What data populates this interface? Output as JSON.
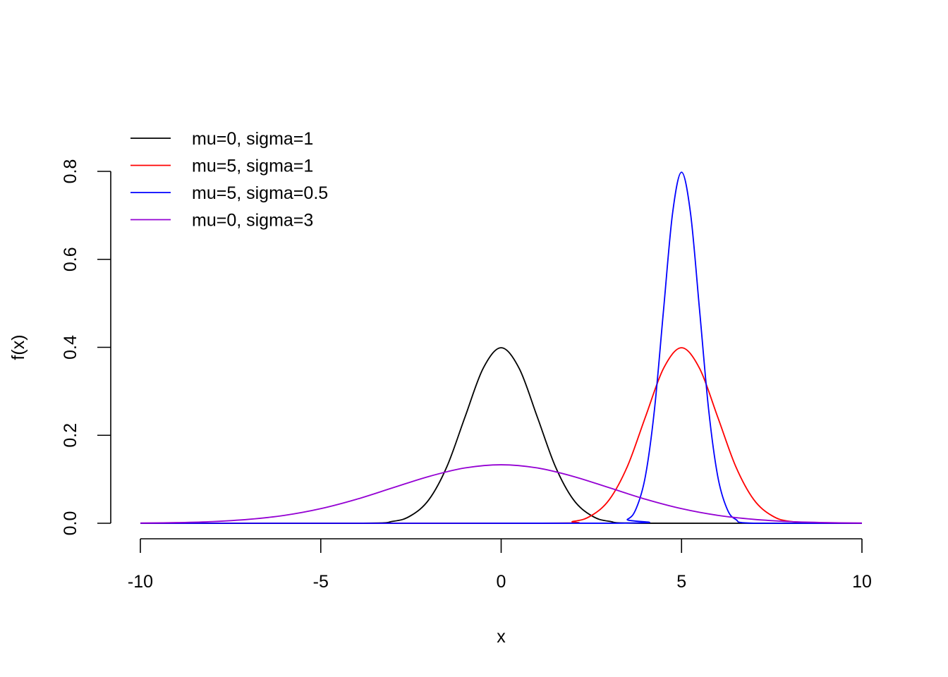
{
  "chart_data": {
    "type": "line",
    "title": "",
    "xlabel": "x",
    "ylabel": "f(x)",
    "xlim": [
      -10,
      10
    ],
    "ylim": [
      0,
      0.8
    ],
    "x_ticks": [
      -10,
      -5,
      0,
      5,
      10
    ],
    "x_tick_labels": [
      "-10",
      "-5",
      "0",
      "5",
      "10"
    ],
    "y_ticks": [
      0,
      0.2,
      0.4,
      0.6,
      0.8
    ],
    "y_tick_labels": [
      "0.0",
      "0.2",
      "0.4",
      "0.6",
      "0.8"
    ],
    "grid": false,
    "legend_position": "top-left",
    "series": [
      {
        "name": "mu=0, sigma=1",
        "color": "#000000",
        "x": [
          -10,
          -4,
          -3,
          -2.5,
          -2,
          -1.5,
          -1,
          -0.5,
          0,
          0.5,
          1,
          1.5,
          2,
          2.5,
          3,
          4,
          10
        ],
        "y": [
          0,
          0.0001,
          0.0044,
          0.0175,
          0.054,
          0.1295,
          0.242,
          0.352,
          0.399,
          0.352,
          0.242,
          0.1295,
          0.054,
          0.0175,
          0.0044,
          0.0001,
          0
        ]
      },
      {
        "name": "mu=5, sigma=1",
        "color": "#ff0000",
        "x": [
          -10,
          1,
          2,
          2.5,
          3,
          3.5,
          4,
          4.5,
          5,
          5.5,
          6,
          6.5,
          7,
          7.5,
          8,
          9,
          10
        ],
        "y": [
          0,
          0.0001,
          0.0044,
          0.0175,
          0.054,
          0.1295,
          0.242,
          0.352,
          0.399,
          0.352,
          0.242,
          0.1295,
          0.054,
          0.0175,
          0.0044,
          0.0001,
          0
        ]
      },
      {
        "name": "mu=5, sigma=0.5",
        "color": "#0000ff",
        "x": [
          -10,
          3,
          3.5,
          3.75,
          4,
          4.25,
          4.5,
          4.75,
          5,
          5.25,
          5.5,
          5.75,
          6,
          6.25,
          6.5,
          7,
          10
        ],
        "y": [
          0,
          0.0001,
          0.0089,
          0.035,
          0.108,
          0.259,
          0.484,
          0.704,
          0.798,
          0.704,
          0.484,
          0.259,
          0.108,
          0.035,
          0.0089,
          0.0001,
          0
        ]
      },
      {
        "name": "mu=0, sigma=3",
        "color": "#9400d3",
        "x": [
          -10,
          -9,
          -8,
          -7,
          -6,
          -5,
          -4,
          -3,
          -2,
          -1,
          0,
          1,
          2,
          3,
          4,
          5,
          6,
          7,
          8,
          9,
          10
        ],
        "y": [
          0.0005,
          0.0015,
          0.0038,
          0.0089,
          0.018,
          0.0332,
          0.0547,
          0.0807,
          0.1065,
          0.1258,
          0.133,
          0.1258,
          0.1065,
          0.0807,
          0.0547,
          0.0332,
          0.018,
          0.0089,
          0.0038,
          0.0015,
          0.0005
        ]
      }
    ]
  }
}
